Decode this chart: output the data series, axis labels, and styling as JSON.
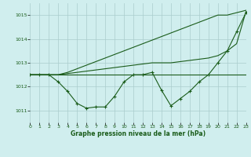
{
  "title": "Graphe pression niveau de la mer (hPa)",
  "bg_color": "#d0eeee",
  "grid_color": "#aacccc",
  "line_color": "#1a5c1a",
  "xlim": [
    0,
    23
  ],
  "ylim": [
    1010.5,
    1015.5
  ],
  "yticks": [
    1011,
    1012,
    1013,
    1014,
    1015
  ],
  "xticks": [
    0,
    1,
    2,
    3,
    4,
    5,
    6,
    7,
    8,
    9,
    10,
    11,
    12,
    13,
    14,
    15,
    16,
    17,
    18,
    19,
    20,
    21,
    22,
    23
  ],
  "series_wavy": [
    1012.5,
    1012.5,
    1012.5,
    1012.2,
    1011.8,
    1011.3,
    1011.1,
    1011.15,
    1011.15,
    1011.6,
    1012.2,
    1012.5,
    1012.5,
    1012.6,
    1011.85,
    1011.2,
    1011.5,
    1011.8,
    1012.2,
    1012.5,
    1013.0,
    1013.5,
    1014.3,
    1015.1
  ],
  "series_flat": [
    1012.5,
    1012.5,
    1012.5,
    1012.5,
    1012.5,
    1012.5,
    1012.5,
    1012.5,
    1012.5,
    1012.5,
    1012.5,
    1012.5,
    1012.5,
    1012.5,
    1012.5,
    1012.5,
    1012.5,
    1012.5,
    1012.5,
    1012.5,
    1012.5,
    1012.5,
    1012.5,
    1012.5
  ],
  "series_gradual": [
    1012.5,
    1012.5,
    1012.5,
    1012.5,
    1012.55,
    1012.6,
    1012.65,
    1012.7,
    1012.75,
    1012.8,
    1012.85,
    1012.9,
    1012.95,
    1013.0,
    1013.0,
    1013.0,
    1013.05,
    1013.1,
    1013.15,
    1013.2,
    1013.3,
    1013.5,
    1013.8,
    1015.15
  ],
  "series_diagonal": [
    1012.5,
    1012.5,
    1012.5,
    1012.5,
    1012.6,
    1012.75,
    1012.9,
    1013.05,
    1013.2,
    1013.35,
    1013.5,
    1013.65,
    1013.8,
    1013.95,
    1014.1,
    1014.25,
    1014.4,
    1014.55,
    1014.7,
    1014.85,
    1015.0,
    1015.0,
    1015.1,
    1015.2
  ]
}
